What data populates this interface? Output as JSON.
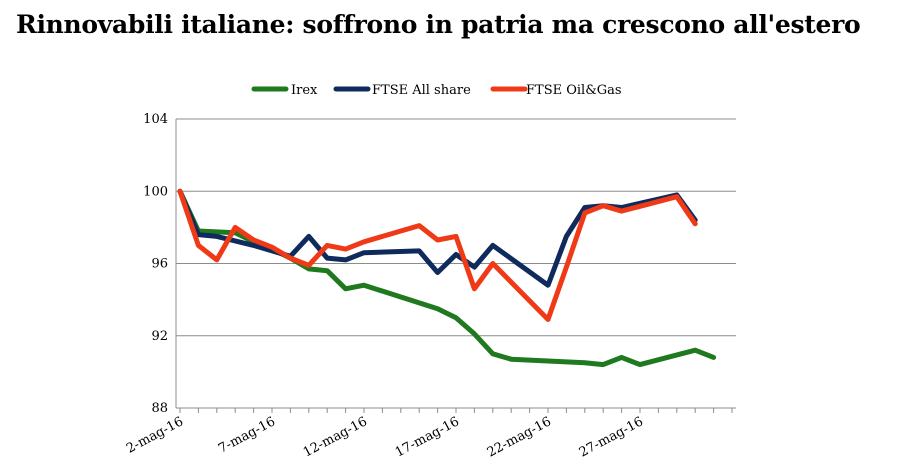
{
  "chart_data": {
    "type": "line",
    "title": "Rinnovabili italiane: soffrono in patria ma crescono all'estero",
    "xlabel": "",
    "ylabel": "",
    "ylim": [
      88,
      104
    ],
    "yticks": [
      88,
      92,
      96,
      100,
      104
    ],
    "grid": true,
    "legend_position": "top",
    "x_tick_labels": [
      "2-mag-16",
      "7-mag-16",
      "12-mag-16",
      "17-mag-16",
      "22-mag-16",
      "27-mag-16"
    ],
    "x_tick_days": [
      2,
      7,
      12,
      17,
      22,
      27
    ],
    "x": [
      2,
      3,
      4,
      5,
      6,
      7,
      8,
      9,
      10,
      11,
      12,
      13,
      14,
      15,
      16,
      17,
      18,
      19,
      20,
      21,
      22,
      23,
      24,
      25,
      26,
      27,
      28,
      29,
      30,
      31,
      32
    ],
    "series": [
      {
        "name": "Irex",
        "color": "#1f7a1f",
        "values": [
          100,
          97.8,
          null,
          97.7,
          97.2,
          96.8,
          96.3,
          95.7,
          95.6,
          94.6,
          94.8,
          null,
          null,
          null,
          93.5,
          93.0,
          92.1,
          91.0,
          90.7,
          null,
          null,
          null,
          90.5,
          90.4,
          90.8,
          90.4,
          null,
          null,
          91.2,
          90.8,
          null
        ]
      },
      {
        "name": "FTSE All share",
        "color": "#0f2a5c",
        "values": [
          100,
          97.6,
          97.5,
          null,
          97.0,
          null,
          96.4,
          97.5,
          96.3,
          96.2,
          96.6,
          null,
          null,
          96.7,
          95.5,
          96.5,
          95.8,
          97.0,
          null,
          null,
          94.8,
          97.5,
          99.1,
          99.2,
          99.1,
          null,
          null,
          99.8,
          98.4,
          null,
          null
        ]
      },
      {
        "name": "FTSE Oil&Gas",
        "color": "#f03a17",
        "values": [
          100,
          97.0,
          96.2,
          98.0,
          97.3,
          96.9,
          96.3,
          95.9,
          97.0,
          96.8,
          97.2,
          null,
          null,
          98.1,
          97.3,
          97.5,
          94.6,
          96.0,
          null,
          null,
          92.9,
          95.8,
          98.8,
          99.2,
          98.9,
          null,
          null,
          99.7,
          98.2,
          null,
          null
        ]
      }
    ]
  }
}
